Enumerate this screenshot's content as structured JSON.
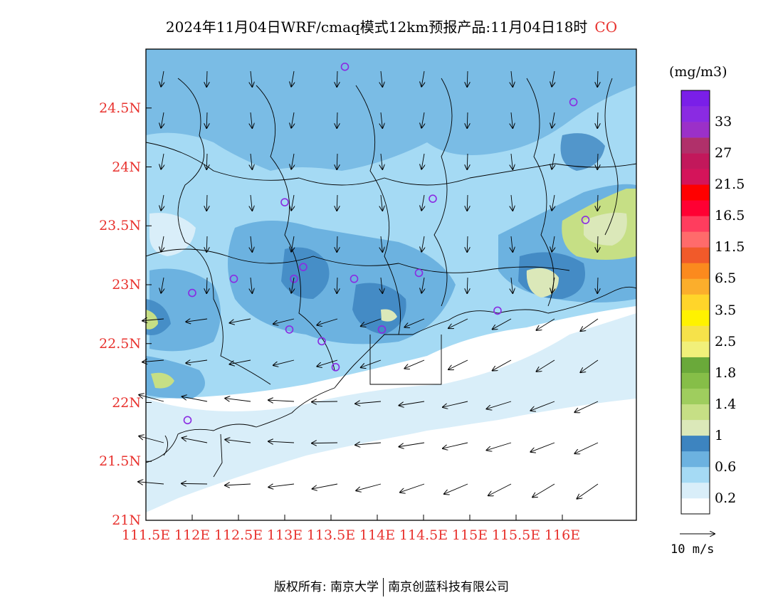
{
  "title": {
    "text": "2024年11月04日WRF/cmaq模式12km预报产品:11月04日18时",
    "pollutant": "CO"
  },
  "map": {
    "lat_ticks": [
      "24.5N",
      "24N",
      "23.5N",
      "23N",
      "22.5N",
      "22N",
      "21.5N",
      "21N"
    ],
    "lon_ticks": [
      "111.5E",
      "112E",
      "112.5E",
      "113E",
      "113.5E",
      "114E",
      "114.5E",
      "115E",
      "115.5E",
      "116E"
    ],
    "lon_range": [
      111.5,
      116.8
    ],
    "lat_range": [
      21.0,
      25.0
    ],
    "station_markers": [
      {
        "lon": 113.65,
        "lat": 24.85
      },
      {
        "lon": 116.12,
        "lat": 24.55
      },
      {
        "lon": 113.0,
        "lat": 23.7
      },
      {
        "lon": 114.6,
        "lat": 23.73
      },
      {
        "lon": 116.25,
        "lat": 23.55
      },
      {
        "lon": 113.2,
        "lat": 23.15
      },
      {
        "lon": 112.45,
        "lat": 23.05
      },
      {
        "lon": 113.1,
        "lat": 23.05
      },
      {
        "lon": 113.75,
        "lat": 23.05
      },
      {
        "lon": 114.45,
        "lat": 23.1
      },
      {
        "lon": 112.0,
        "lat": 22.93
      },
      {
        "lon": 115.3,
        "lat": 22.78
      },
      {
        "lon": 113.05,
        "lat": 22.62
      },
      {
        "lon": 114.05,
        "lat": 22.62
      },
      {
        "lon": 113.4,
        "lat": 22.52
      },
      {
        "lon": 113.55,
        "lat": 22.3
      },
      {
        "lon": 111.95,
        "lat": 21.85
      }
    ]
  },
  "colorbar": {
    "unit": "(mg/m3)",
    "colors": [
      "#ffffff",
      "#d9eef9",
      "#a5daf4",
      "#6cb2e0",
      "#3d84c0",
      "#dbe8b9",
      "#c6df85",
      "#9fcd5e",
      "#86be48",
      "#6aa93a",
      "#f1f07a",
      "#f6e24a",
      "#fff200",
      "#ffd52a",
      "#fbae2c",
      "#fb8a1e",
      "#f15a2a",
      "#ff6b6b",
      "#ff3d5e",
      "#ff0033",
      "#ff0000",
      "#d4145a",
      "#c2185b",
      "#b0306a",
      "#9b30c8",
      "#8a2be2",
      "#7a1fe8"
    ],
    "labels": [
      "0.2",
      "0.6",
      "1",
      "1.4",
      "1.8",
      "2.5",
      "3.5",
      "6.5",
      "11.5",
      "16.5",
      "21.5",
      "27",
      "33"
    ]
  },
  "wind_reference": {
    "label": "10 m/s"
  },
  "footer": {
    "copyright": "版权所有: 南京大学",
    "company": "南京创蓝科技有限公司"
  }
}
